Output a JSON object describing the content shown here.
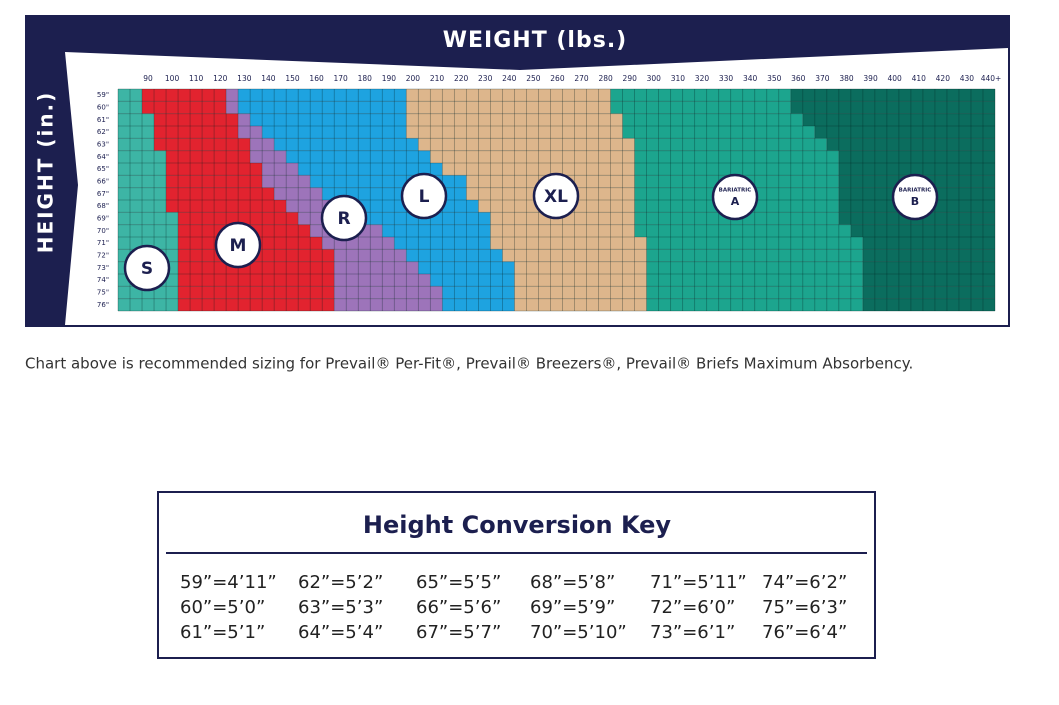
{
  "header": {
    "weight_label": "WEIGHT (lbs.)",
    "height_label": "HEIGHT (in.)"
  },
  "weights": [
    "90",
    "100",
    "110",
    "120",
    "130",
    "140",
    "150",
    "160",
    "170",
    "180",
    "190",
    "200",
    "210",
    "220",
    "230",
    "240",
    "250",
    "260",
    "270",
    "280",
    "290",
    "300",
    "310",
    "320",
    "330",
    "340",
    "350",
    "360",
    "370",
    "380",
    "390",
    "400",
    "410",
    "420",
    "430",
    "440+"
  ],
  "heights": [
    "59\"",
    "60\"",
    "61\"",
    "62\"",
    "63\"",
    "64\"",
    "65\"",
    "66\"",
    "67\"",
    "68\"",
    "69\"",
    "70\"",
    "71\"",
    "72\"",
    "73\"",
    "74\"",
    "75\"",
    "76\""
  ],
  "sizes": [
    {
      "label": "S",
      "color": "#3db5a5"
    },
    {
      "label": "M",
      "color": "#e2232f"
    },
    {
      "label": "R",
      "color": "#9d74ba"
    },
    {
      "label": "L",
      "color": "#1ea3e0"
    },
    {
      "label": "XL",
      "color": "#ddb68c"
    },
    {
      "label": "A",
      "note": "BARIATRIC",
      "color": "#1ca58e"
    },
    {
      "label": "B",
      "note": "BARIATRIC",
      "color": "#0b6d5e"
    }
  ],
  "caption": "Chart above is recommended sizing for Prevail® Per-Fit®, Prevail® Breezers®, Prevail® Briefs Maximum Absorbency.",
  "key": {
    "title": "Height Conversion Key",
    "columns": [
      [
        "59”=4’11”",
        "60”=5’0”",
        "61”=5’1”"
      ],
      [
        "62”=5’2”",
        "63”=5’3”",
        "64”=5’4”"
      ],
      [
        "65”=5’5”",
        "66”=5’6”",
        "67”=5’7”"
      ],
      [
        "68”=5’8”",
        "69”=5’9”",
        "70”=5’10”"
      ],
      [
        "71”=5’11”",
        "72”=6’0”",
        "73”=6’1”"
      ],
      [
        "74”=6’2”",
        "75”=6’3”",
        "76”=6’4”"
      ]
    ]
  }
}
